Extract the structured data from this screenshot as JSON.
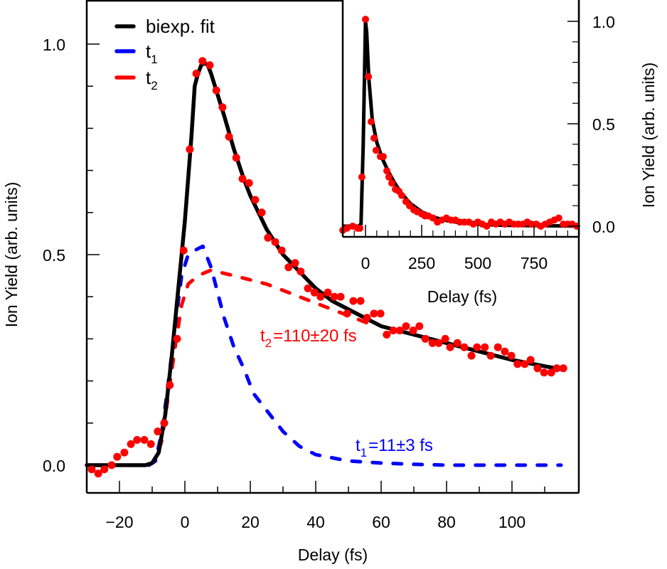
{
  "chart_data": [
    {
      "id": "main",
      "type": "line",
      "title": "",
      "xlabel": "Delay (fs)",
      "ylabel": "Ion Yield (arb. units)",
      "xlim": [
        -30,
        120
      ],
      "ylim": [
        -0.065,
        1.105
      ],
      "xticks": [
        -20,
        0,
        20,
        40,
        60,
        80,
        100
      ],
      "xtick_labels": [
        "−20",
        "0",
        "20",
        "40",
        "60",
        "80",
        "100"
      ],
      "xminor": [
        -30,
        -10,
        10,
        30,
        50,
        70,
        90,
        110
      ],
      "yticks": [
        0.0,
        0.5,
        1.0
      ],
      "ytick_labels": [
        "0.0",
        "0.5",
        "1.0"
      ],
      "yminor": [
        0.1,
        0.2,
        0.3,
        0.4,
        0.6,
        0.7,
        0.8,
        0.9
      ],
      "grid": false,
      "legend": {
        "position": "top-left",
        "entries": [
          {
            "label": "biexp. fit",
            "sub": "",
            "color": "#000000",
            "style": "solid"
          },
          {
            "label": "t",
            "sub": "1",
            "color": "#0000ff",
            "style": "solid"
          },
          {
            "label": "t",
            "sub": "2",
            "color": "#ff0000",
            "style": "solid"
          }
        ]
      },
      "annotations": [
        {
          "main": "t",
          "sub": "2",
          "rest": "=110±20 fs",
          "color": "#ff0000",
          "x": 22,
          "y": 0.3
        },
        {
          "main": "t",
          "sub": "1",
          "rest": "=11±3 fs",
          "color": "#0000ff",
          "x": 54,
          "y": 0.04
        }
      ],
      "series": [
        {
          "name": "data",
          "kind": "scatter",
          "color": "#ff0000",
          "x": [
            -28.5,
            -26.5,
            -24.6,
            -22.4,
            -20.7,
            -18.5,
            -16.5,
            -14.6,
            -12.4,
            -10.4,
            -8.3,
            -6.3,
            -4.6,
            -2.4,
            -0.4,
            1.5,
            3.5,
            5.4,
            7.6,
            9.6,
            11.5,
            13.5,
            15.7,
            17.6,
            19.6,
            21.5,
            23.5,
            25.4,
            27.6,
            29.6,
            31.7,
            33.7,
            35.4,
            37.6,
            39.6,
            41.5,
            43.7,
            45.7,
            47.6,
            49.6,
            51.5,
            53.7,
            55.7,
            57.8,
            59.8,
            61.7,
            63.7,
            65.7,
            67.6,
            69.8,
            71.7,
            73.5,
            75.7,
            77.6,
            79.6,
            81.1,
            83.3,
            85.4,
            87.6,
            89.3,
            91.7,
            93.5,
            95.7,
            97.8,
            99.8,
            101.7,
            103.9,
            105.7,
            107.8,
            109.8,
            112.0,
            113.7,
            115.7
          ],
          "y": [
            -0.01,
            -0.02,
            -0.01,
            0.0,
            0.02,
            0.03,
            0.05,
            0.06,
            0.06,
            0.05,
            0.08,
            0.1,
            0.19,
            0.3,
            0.51,
            0.75,
            0.93,
            0.96,
            0.95,
            0.89,
            0.85,
            0.78,
            0.73,
            0.68,
            0.67,
            0.63,
            0.6,
            0.54,
            0.53,
            0.51,
            0.47,
            0.48,
            0.46,
            0.42,
            0.41,
            0.4,
            0.41,
            0.4,
            0.4,
            0.36,
            0.39,
            0.39,
            0.35,
            0.36,
            0.36,
            0.31,
            0.32,
            0.32,
            0.33,
            0.32,
            0.33,
            0.3,
            0.29,
            0.29,
            0.3,
            0.28,
            0.29,
            0.28,
            0.26,
            0.28,
            0.28,
            0.26,
            0.28,
            0.27,
            0.26,
            0.24,
            0.24,
            0.25,
            0.23,
            0.22,
            0.22,
            0.23,
            0.23
          ]
        },
        {
          "name": "biexp. fit",
          "kind": "line",
          "color": "#000000",
          "style": "solid",
          "x": [
            -30,
            -12,
            -10,
            -8,
            -6,
            -4,
            -2,
            0,
            2,
            3,
            4,
            5,
            6,
            7,
            8,
            10,
            12,
            15,
            18,
            20,
            25,
            30,
            35,
            40,
            45,
            50,
            55,
            60,
            70,
            80,
            90,
            100,
            110,
            115
          ],
          "y": [
            0,
            0,
            0.005,
            0.03,
            0.12,
            0.26,
            0.42,
            0.58,
            0.78,
            0.9,
            0.93,
            0.95,
            0.955,
            0.95,
            0.93,
            0.88,
            0.83,
            0.75,
            0.68,
            0.64,
            0.56,
            0.5,
            0.46,
            0.42,
            0.39,
            0.37,
            0.35,
            0.33,
            0.31,
            0.29,
            0.27,
            0.25,
            0.235,
            0.228
          ]
        },
        {
          "name": "t1",
          "kind": "line",
          "color": "#0000ff",
          "style": "dashed",
          "x": [
            -30,
            -11,
            -9,
            -7,
            -5,
            -3,
            -1,
            1,
            3,
            5.5,
            8,
            10,
            12,
            15,
            18,
            21,
            25,
            30,
            35,
            40,
            50,
            60,
            70,
            80,
            115
          ],
          "y": [
            0,
            0,
            0.01,
            0.08,
            0.2,
            0.33,
            0.45,
            0.5,
            0.51,
            0.52,
            0.47,
            0.41,
            0.35,
            0.28,
            0.23,
            0.17,
            0.13,
            0.08,
            0.045,
            0.025,
            0.01,
            0.005,
            0.002,
            0,
            0
          ]
        },
        {
          "name": "t2",
          "kind": "line",
          "color": "#ff0000",
          "style": "dashed",
          "x": [
            -30,
            -11,
            -9,
            -7,
            -5,
            -3,
            -1,
            1,
            4,
            7,
            8,
            15,
            25,
            35,
            45,
            55,
            58
          ],
          "y": [
            0,
            0,
            0.01,
            0.06,
            0.17,
            0.28,
            0.38,
            0.43,
            0.45,
            0.46,
            0.463,
            0.45,
            0.43,
            0.4,
            0.37,
            0.34,
            0.33
          ]
        }
      ]
    },
    {
      "id": "inset",
      "type": "line",
      "title": "",
      "xlabel": "Delay (fs)",
      "ylabel": "Ion Yield (arb. units)",
      "xlim": [
        -100,
        950
      ],
      "ylim": [
        -0.05,
        1.1
      ],
      "xticks": [
        0,
        250,
        500,
        750
      ],
      "xtick_labels": [
        "0",
        "250",
        "500",
        "750"
      ],
      "xminor": [
        -50,
        50,
        100,
        150,
        200,
        300,
        350,
        400,
        450,
        550,
        600,
        650,
        700,
        800,
        850,
        900
      ],
      "yticks": [
        0.0,
        0.5,
        1.0
      ],
      "ytick_labels": [
        "0.0",
        "0.5",
        "1.0"
      ],
      "yminor": [
        0.1,
        0.2,
        0.3,
        0.4,
        0.6,
        0.7,
        0.8,
        0.9
      ],
      "grid": false,
      "series": [
        {
          "name": "data",
          "kind": "scatter",
          "color": "#ff0000",
          "x": [
            -101,
            -82,
            -57,
            -35,
            -25,
            -16,
            0,
            13,
            25,
            38,
            47,
            66,
            79,
            95,
            104,
            117,
            133,
            149,
            161,
            180,
            196,
            215,
            230,
            250,
            265,
            280,
            300,
            320,
            340,
            360,
            380,
            400,
            420,
            440,
            460,
            480,
            500,
            520,
            540,
            560,
            580,
            600,
            620,
            640,
            660,
            680,
            700,
            720,
            740,
            760,
            780,
            800,
            820,
            840,
            860,
            880,
            900,
            920,
            940
          ],
          "y": [
            -0.02,
            -0.01,
            0.0,
            -0.01,
            -0.01,
            0.24,
            1.01,
            0.73,
            0.51,
            0.43,
            0.37,
            0.34,
            0.34,
            0.27,
            0.24,
            0.21,
            0.18,
            0.17,
            0.15,
            0.12,
            0.1,
            0.08,
            0.07,
            0.06,
            0.05,
            0.05,
            0.04,
            0.02,
            0.03,
            0.04,
            0.03,
            0.03,
            0.02,
            0.02,
            0.02,
            0.01,
            0.02,
            0.01,
            0.0,
            0.02,
            0.01,
            0.02,
            0.01,
            0.02,
            0.01,
            0.01,
            0.01,
            0.02,
            0.01,
            0.01,
            0.0,
            0.01,
            0.02,
            0.03,
            0.04,
            0.01,
            0.01,
            0.01,
            0.0
          ]
        },
        {
          "name": "biexp. fit",
          "kind": "line",
          "color": "#000000",
          "style": "solid",
          "x": [
            -100,
            -30,
            -20,
            -10,
            0,
            5,
            15,
            30,
            50,
            75,
            100,
            130,
            160,
            200,
            250,
            300,
            350,
            400,
            500,
            600,
            700,
            800,
            900,
            950
          ],
          "y": [
            0,
            0,
            0.01,
            0.4,
            1.0,
            0.95,
            0.72,
            0.52,
            0.41,
            0.33,
            0.27,
            0.21,
            0.16,
            0.11,
            0.07,
            0.045,
            0.03,
            0.02,
            0.01,
            0.005,
            0.003,
            0.002,
            0.001,
            0.001
          ]
        }
      ]
    }
  ]
}
